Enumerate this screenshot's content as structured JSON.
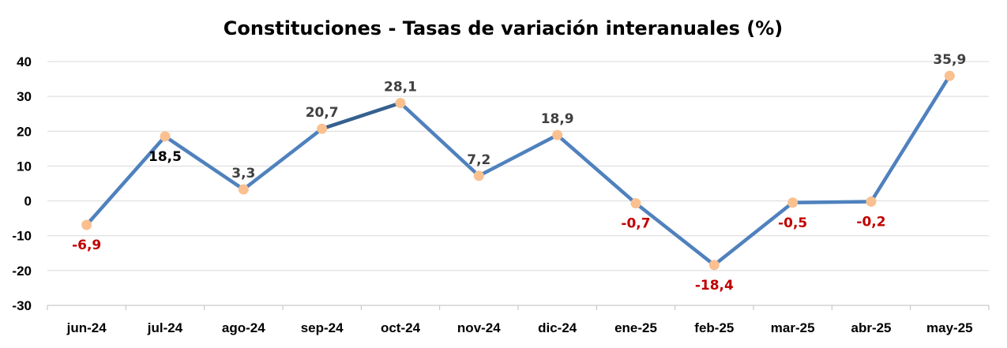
{
  "chart_data": {
    "type": "line",
    "title": "Constituciones - Tasas de variación interanuales (%)",
    "xlabel": "",
    "ylabel": "",
    "categories": [
      "jun-24",
      "jul-24",
      "ago-24",
      "sep-24",
      "oct-24",
      "nov-24",
      "dic-24",
      "ene-25",
      "feb-25",
      "mar-25",
      "abr-25",
      "may-25"
    ],
    "series": [
      {
        "values": [
          -6.9,
          18.5,
          3.3,
          20.7,
          28.1,
          7.2,
          18.9,
          -0.7,
          -18.4,
          -0.5,
          -0.2,
          35.9
        ],
        "data_labels": [
          "-6,9",
          "18,5",
          "3,3",
          "20,7",
          "28,1",
          "7,2",
          "18,9",
          "-0,7",
          "-18,4",
          "-0,5",
          "-0,2",
          "35,9"
        ]
      }
    ],
    "ylim": [
      -30,
      40
    ],
    "yticks": [
      40,
      30,
      20,
      10,
      0,
      -10,
      -20,
      -30
    ],
    "ytick_labels": [
      "40",
      "30",
      "20",
      "10",
      "0",
      "-10",
      "-20",
      "-30"
    ],
    "grid": true,
    "legend": "none",
    "colors": {
      "line": "#4f81bd",
      "line_highlight": "#35608f",
      "marker": "#fac090",
      "label_positive_dark": "#404040",
      "label_positive_black": "#000000",
      "label_negative": "#c00000",
      "grid": "#d9d9d9"
    }
  }
}
